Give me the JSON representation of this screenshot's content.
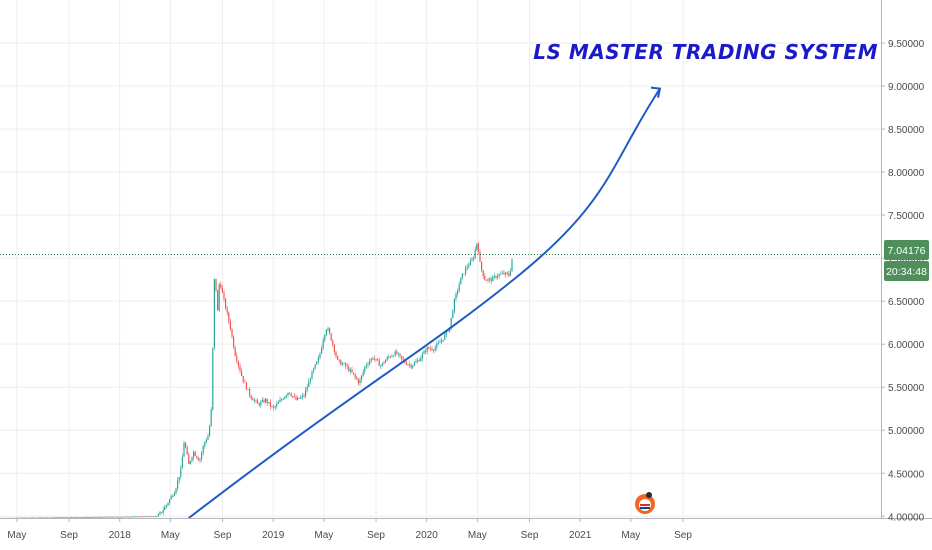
{
  "chart_data": {
    "type": "candlestick",
    "title": "",
    "watermark": "LS MASTER TRADING SYSTEM",
    "xlabel": "",
    "ylabel": "",
    "xlim": [
      2016.22,
      2021.96
    ],
    "ylim": [
      3.98,
      10.0
    ],
    "grid": true,
    "x_ticks": [
      {
        "t": 2016.33,
        "label": "May"
      },
      {
        "t": 2016.67,
        "label": "Sep"
      },
      {
        "t": 2017.0,
        "label": "2018"
      },
      {
        "t": 2017.33,
        "label": "May"
      },
      {
        "t": 2017.67,
        "label": "Sep"
      },
      {
        "t": 2018.0,
        "label": "2019"
      },
      {
        "t": 2018.33,
        "label": "May"
      },
      {
        "t": 2018.67,
        "label": "Sep"
      },
      {
        "t": 2019.0,
        "label": "2020"
      },
      {
        "t": 2019.33,
        "label": "May"
      },
      {
        "t": 2019.67,
        "label": "Sep"
      },
      {
        "t": 2020.0,
        "label": "2021"
      },
      {
        "t": 2020.33,
        "label": "May"
      },
      {
        "t": 2020.67,
        "label": "Sep"
      }
    ],
    "y_ticks": [
      {
        "v": 4.0,
        "label": "4.00000"
      },
      {
        "v": 4.5,
        "label": "4.50000"
      },
      {
        "v": 5.0,
        "label": "5.00000"
      },
      {
        "v": 5.5,
        "label": "5.50000"
      },
      {
        "v": 6.0,
        "label": "6.00000"
      },
      {
        "v": 6.5,
        "label": "6.50000"
      },
      {
        "v": 7.0,
        "label": "7.00000"
      },
      {
        "v": 7.5,
        "label": "7.50000"
      },
      {
        "v": 8.0,
        "label": "8.00000"
      },
      {
        "v": 8.5,
        "label": "8.50000"
      },
      {
        "v": 9.0,
        "label": "9.00000"
      },
      {
        "v": 9.5,
        "label": "9.50000"
      }
    ],
    "price_path": [
      [
        2016.22,
        3.98
      ],
      [
        2016.8,
        3.99
      ],
      [
        2017.25,
        4.0
      ],
      [
        2017.3,
        4.12
      ],
      [
        2017.36,
        4.3
      ],
      [
        2017.4,
        4.55
      ],
      [
        2017.42,
        4.88
      ],
      [
        2017.45,
        4.6
      ],
      [
        2017.48,
        4.75
      ],
      [
        2017.52,
        4.65
      ],
      [
        2017.55,
        4.85
      ],
      [
        2017.58,
        4.95
      ],
      [
        2017.6,
        5.3
      ],
      [
        2017.61,
        6.3
      ],
      [
        2017.62,
        6.95
      ],
      [
        2017.635,
        6.3
      ],
      [
        2017.65,
        6.75
      ],
      [
        2017.68,
        6.5
      ],
      [
        2017.72,
        6.2
      ],
      [
        2017.75,
        5.9
      ],
      [
        2017.8,
        5.6
      ],
      [
        2017.85,
        5.4
      ],
      [
        2017.9,
        5.3
      ],
      [
        2017.95,
        5.35
      ],
      [
        2018.0,
        5.25
      ],
      [
        2018.05,
        5.35
      ],
      [
        2018.1,
        5.45
      ],
      [
        2018.15,
        5.35
      ],
      [
        2018.2,
        5.4
      ],
      [
        2018.25,
        5.65
      ],
      [
        2018.3,
        5.85
      ],
      [
        2018.33,
        6.1
      ],
      [
        2018.35,
        6.2
      ],
      [
        2018.38,
        6.05
      ],
      [
        2018.42,
        5.8
      ],
      [
        2018.47,
        5.75
      ],
      [
        2018.52,
        5.65
      ],
      [
        2018.56,
        5.55
      ],
      [
        2018.6,
        5.75
      ],
      [
        2018.65,
        5.85
      ],
      [
        2018.7,
        5.75
      ],
      [
        2018.75,
        5.85
      ],
      [
        2018.8,
        5.9
      ],
      [
        2018.85,
        5.8
      ],
      [
        2018.9,
        5.75
      ],
      [
        2018.95,
        5.82
      ],
      [
        2019.0,
        5.95
      ],
      [
        2019.05,
        5.95
      ],
      [
        2019.1,
        6.05
      ],
      [
        2019.15,
        6.2
      ],
      [
        2019.18,
        6.5
      ],
      [
        2019.22,
        6.75
      ],
      [
        2019.26,
        6.9
      ],
      [
        2019.3,
        6.98
      ],
      [
        2019.33,
        7.2
      ],
      [
        2019.35,
        6.9
      ],
      [
        2019.38,
        6.75
      ],
      [
        2019.42,
        6.75
      ],
      [
        2019.46,
        6.8
      ],
      [
        2019.5,
        6.82
      ],
      [
        2019.54,
        6.8
      ],
      [
        2019.56,
        7.04
      ]
    ],
    "last_price": "7.04176",
    "countdown": "20:34:48",
    "curve_points": [
      [
        2017.45,
        3.98
      ],
      [
        2018.6,
        5.55
      ],
      [
        2019.0,
        5.93
      ],
      [
        2019.6,
        6.8
      ],
      [
        2020.2,
        8.1
      ],
      [
        2020.52,
        8.97
      ]
    ],
    "colors": {
      "up": "#26a69a",
      "down": "#ef5350",
      "curve": "#1e5bc6",
      "price_label": "#4f8f5b",
      "price_line": "#2e7d4f",
      "grid": "#eeeeee"
    }
  }
}
